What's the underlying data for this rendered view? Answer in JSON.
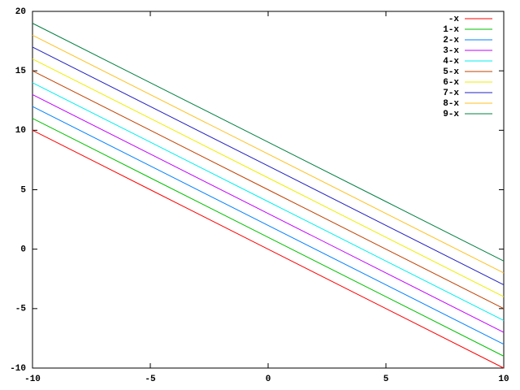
{
  "chart_data": {
    "type": "line",
    "x": [
      -10,
      -5,
      0,
      5,
      10
    ],
    "series": [
      {
        "name": "-x",
        "color": "#ff0000",
        "values": [
          10,
          5,
          0,
          -5,
          -10
        ]
      },
      {
        "name": "1-x",
        "color": "#00c000",
        "values": [
          11,
          6,
          1,
          -4,
          -9
        ]
      },
      {
        "name": "2-x",
        "color": "#0080ff",
        "values": [
          12,
          7,
          2,
          -3,
          -8
        ]
      },
      {
        "name": "3-x",
        "color": "#c000ff",
        "values": [
          13,
          8,
          3,
          -2,
          -7
        ]
      },
      {
        "name": "4-x",
        "color": "#00eeee",
        "values": [
          14,
          9,
          4,
          -1,
          -6
        ]
      },
      {
        "name": "5-x",
        "color": "#c04000",
        "values": [
          15,
          10,
          5,
          0,
          -5
        ]
      },
      {
        "name": "6-x",
        "color": "#eeee00",
        "values": [
          16,
          11,
          6,
          1,
          -4
        ]
      },
      {
        "name": "7-x",
        "color": "#2020c0",
        "values": [
          17,
          12,
          7,
          2,
          -3
        ]
      },
      {
        "name": "8-x",
        "color": "#ffc020",
        "values": [
          18,
          13,
          8,
          3,
          -2
        ]
      },
      {
        "name": "9-x",
        "color": "#008040",
        "values": [
          19,
          14,
          9,
          4,
          -1
        ]
      }
    ],
    "xlim": [
      -10,
      10
    ],
    "xticks": [
      -10,
      -5,
      0,
      5,
      10
    ],
    "ylim": [
      -10,
      20
    ],
    "yticks": [
      -10,
      -5,
      0,
      5,
      10,
      15,
      20
    ],
    "legend": "top-right"
  }
}
